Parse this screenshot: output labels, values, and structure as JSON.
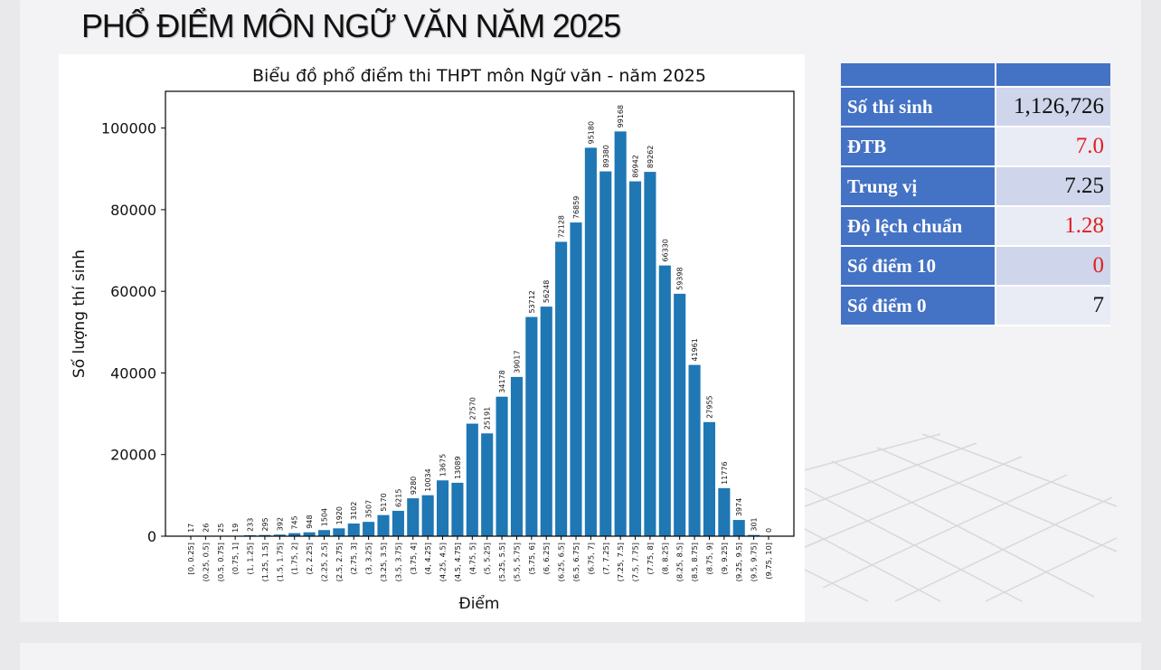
{
  "page": {
    "title": "PHỔ ĐIỂM MÔN NGỮ VĂN NĂM 2025"
  },
  "stats": {
    "rows": [
      {
        "label": "Số thí sinh",
        "value": "1,126,726",
        "color": "#111111"
      },
      {
        "label": "ĐTB",
        "value": "7.0",
        "color": "#e02020"
      },
      {
        "label": "Trung vị",
        "value": "7.25",
        "color": "#111111"
      },
      {
        "label": "Độ lệch chuẩn",
        "value": "1.28",
        "color": "#e02020"
      },
      {
        "label": "Số điểm 10",
        "value": "0",
        "color": "#e02020"
      },
      {
        "label": "Số điểm 0",
        "value": "7",
        "color": "#111111"
      }
    ]
  },
  "chart_data": {
    "type": "bar",
    "title": "Biểu đồ phổ điểm thi THPT môn Ngữ văn - năm 2025",
    "xlabel": "Điểm",
    "ylabel": "Số lượng thí sinh",
    "ylim": [
      0,
      109000
    ],
    "yticks": [
      0,
      20000,
      40000,
      60000,
      80000,
      100000
    ],
    "bar_color": "#1f77b4",
    "categories": [
      "[0, 0.25]",
      "(0.25, 0.5]",
      "(0.5, 0.75]",
      "(0.75, 1]",
      "(1, 1.25]",
      "(1.25, 1.5]",
      "(1.5, 1.75]",
      "(1.75, 2]",
      "(2, 2.25]",
      "(2.25, 2.5]",
      "(2.5, 2.75]",
      "(2.75, 3]",
      "(3, 3.25]",
      "(3.25, 3.5]",
      "(3.5, 3.75]",
      "(3.75, 4]",
      "(4, 4.25]",
      "(4.25, 4.5]",
      "(4.5, 4.75]",
      "(4.75, 5]",
      "(5, 5.25]",
      "(5.25, 5.5]",
      "(5.5, 5.75]",
      "(5.75, 6]",
      "(6, 6.25]",
      "(6.25, 6.5]",
      "(6.5, 6.75]",
      "(6.75, 7]",
      "(7, 7.25]",
      "(7.25, 7.5]",
      "(7.5, 7.75]",
      "(7.75, 8]",
      "(8, 8.25]",
      "(8.25, 8.5]",
      "(8.5, 8.75]",
      "(8.75, 9]",
      "(9, 9.25]",
      "(9.25, 9.5]",
      "(9.5, 9.75]",
      "(9.75, 10]"
    ],
    "values": [
      17,
      26,
      25,
      19,
      233,
      295,
      392,
      745,
      948,
      1504,
      1920,
      3102,
      3507,
      5170,
      6215,
      9280,
      10034,
      13675,
      13089,
      27570,
      25191,
      34178,
      39017,
      53712,
      56248,
      72128,
      76859,
      95180,
      89380,
      99168,
      86942,
      89262,
      66330,
      59398,
      41961,
      27955,
      11776,
      3974,
      301,
      0
    ]
  }
}
